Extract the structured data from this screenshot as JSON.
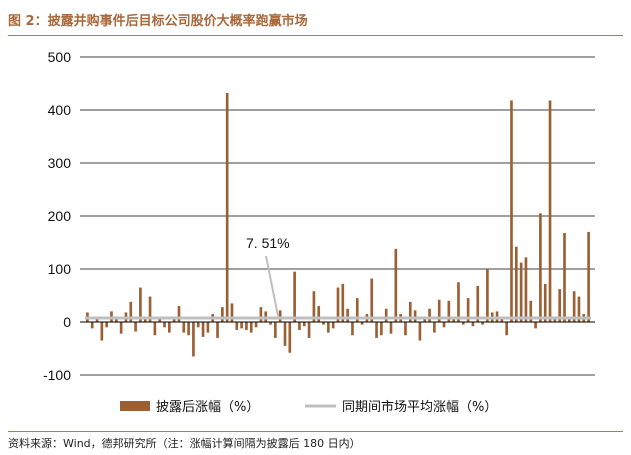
{
  "figure": {
    "title": "图 2：披露并购事件后目标公司股价大概率跑赢市场",
    "source_note": "资料来源：Wind，德邦研究所（注：涨幅计算间隔为披露后 180 日内）"
  },
  "colors": {
    "bar": "#9b5f33",
    "market_line": "#bfbfbf",
    "title": "#a8683a",
    "rule": "#b07a4f"
  },
  "chart_data": {
    "type": "bar",
    "title": "",
    "xlabel": "",
    "ylabel": "",
    "ylim": [
      -100,
      500
    ],
    "yticks": [
      -100,
      0,
      100,
      200,
      300,
      400,
      500
    ],
    "grid": "horizontal",
    "legend_position": "bottom",
    "annotation": {
      "text": "7. 51%",
      "value": 7.51
    },
    "series": [
      {
        "name": "披露后涨幅（%）",
        "kind": "bar",
        "values": [
          18,
          -12,
          7,
          -35,
          -10,
          20,
          5,
          -22,
          18,
          38,
          -18,
          65,
          10,
          48,
          -25,
          5,
          -10,
          -20,
          5,
          30,
          -20,
          -25,
          -65,
          -10,
          -28,
          -20,
          15,
          -30,
          28,
          432,
          35,
          -15,
          -12,
          -15,
          -20,
          -10,
          28,
          20,
          -5,
          -30,
          22,
          -45,
          -58,
          95,
          -15,
          -8,
          -30,
          58,
          30,
          -5,
          -20,
          -12,
          65,
          72,
          25,
          -25,
          45,
          -5,
          15,
          82,
          -30,
          -25,
          25,
          -22,
          138,
          15,
          -25,
          38,
          22,
          -35,
          8,
          25,
          -20,
          42,
          -10,
          40,
          5,
          75,
          -5,
          45,
          -8,
          68,
          -5,
          100,
          18,
          20,
          5,
          -25,
          418,
          142,
          112,
          122,
          40,
          -12,
          205,
          72,
          418,
          5,
          62,
          168,
          10,
          58,
          48,
          15,
          170
        ]
      },
      {
        "name": "同期间市场平均涨幅（%）",
        "kind": "line",
        "value": 7.51
      }
    ]
  }
}
